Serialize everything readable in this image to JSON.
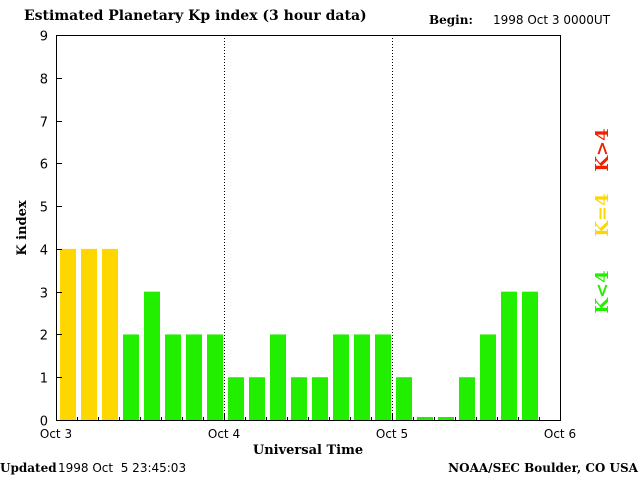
{
  "header": {
    "title": "Estimated Planetary Kp index (3 hour data)",
    "begin_label": "Begin:",
    "begin_value": "1998 Oct 3 0000UT"
  },
  "footer": {
    "updated_label": "Updated",
    "updated_value": "1998 Oct  5 23:45:03",
    "credit": "NOAA/SEC Boulder, CO USA"
  },
  "colors": {
    "below_4": "#22ee00",
    "equal_4": "#ffd700",
    "above_4": "#ee2200",
    "axis": "#000000"
  },
  "chart_data": {
    "type": "bar",
    "title": "Estimated Planetary Kp index (3 hour data)",
    "xlabel": "Universal Time",
    "ylabel": "K index",
    "ylim": [
      0,
      9
    ],
    "yticks": [
      "0",
      "1",
      "2",
      "3",
      "4",
      "5",
      "6",
      "7",
      "8",
      "9"
    ],
    "xticks": [
      "Oct 3",
      "Oct 4",
      "Oct 5",
      "Oct 6"
    ],
    "day_dividers": [
      "Oct 4",
      "Oct 5"
    ],
    "interval_hours": 3,
    "values": [
      4,
      4,
      4,
      2,
      3,
      2,
      2,
      2,
      1,
      1,
      2,
      1,
      1,
      2,
      2,
      2,
      1,
      0,
      0,
      1,
      2,
      3,
      3
    ],
    "legend": [
      {
        "label": "K<4",
        "color_key": "below_4"
      },
      {
        "label": "K=4",
        "color_key": "equal_4"
      },
      {
        "label": "K>4",
        "color_key": "above_4"
      }
    ],
    "grid": false,
    "legend_position": "right"
  }
}
